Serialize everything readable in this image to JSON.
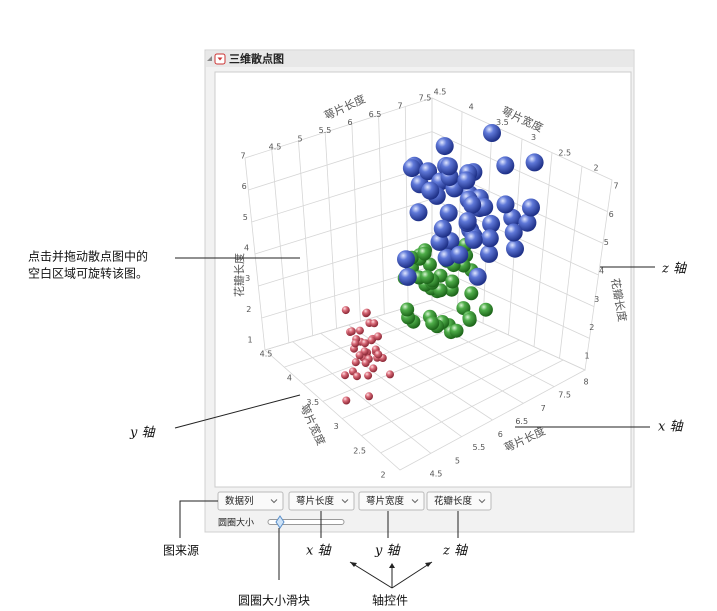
{
  "panel": {
    "title": "三维散点图"
  },
  "plot": {
    "axis_titles": [
      "萼片长度",
      "萼片宽度",
      "花瓣长度",
      "花瓣长度",
      "萼片宽度",
      "萼片长度"
    ],
    "ticks_top_left": [
      "4.5",
      "5",
      "5.5",
      "6",
      "6.5",
      "7",
      "7.5"
    ],
    "ticks_top_right": [
      "4.5",
      "4",
      "3.5",
      "3",
      "2.5",
      "2"
    ],
    "ticks_left": [
      "7",
      "6",
      "5",
      "4",
      "3",
      "2",
      "1"
    ],
    "ticks_right": [
      "7",
      "6",
      "5",
      "4",
      "3",
      "2",
      "1"
    ],
    "ticks_bottom_left": [
      "4.5",
      "4",
      "3.5",
      "3",
      "2.5",
      "2"
    ],
    "ticks_bottom_right": [
      "8",
      "7.5",
      "7",
      "6.5",
      "6",
      "5.5",
      "5",
      "4.5"
    ]
  },
  "controls": {
    "buttons": [
      "数据列",
      "萼片长度",
      "萼片宽度",
      "花瓣长度"
    ],
    "slider_label": "圆圈大小"
  },
  "callouts": {
    "rotate": [
      "点击并拖动散点图中的",
      "空白区域可旋转该图。"
    ],
    "z_axis": "z 轴",
    "y_axis": "y 轴",
    "x_axis": "x 轴",
    "source": "图来源",
    "x_control": "x 轴",
    "y_control": "y 轴",
    "z_control": "z 轴",
    "slider": "圆圈大小滑块",
    "axis_controls": "轴控件"
  }
}
